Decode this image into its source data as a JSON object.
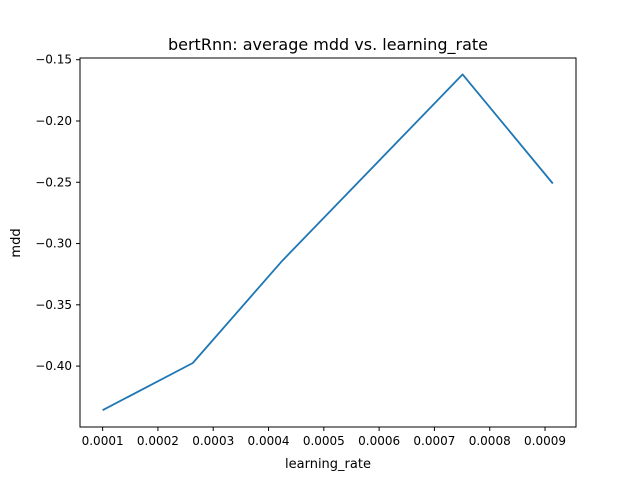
{
  "chart_data": {
    "type": "line",
    "title": "bertRnn: average mdd vs. learning_rate",
    "xlabel": "learning_rate",
    "ylabel": "mdd",
    "xlim": [
      5.91e-05,
      0.000956
    ],
    "ylim": [
      -0.4497,
      -0.1486
    ],
    "xticks": [
      0.0001,
      0.0002,
      0.0003,
      0.0004,
      0.0005,
      0.0006,
      0.0007,
      0.0008,
      0.0009
    ],
    "xtick_labels": [
      "0.0001",
      "0.0002",
      "0.0003",
      "0.0004",
      "0.0005",
      "0.0006",
      "0.0007",
      "0.0008",
      "0.0009"
    ],
    "yticks": [
      -0.4,
      -0.35,
      -0.3,
      -0.25,
      -0.2,
      -0.15
    ],
    "ytick_labels": [
      "−0.40",
      "−0.35",
      "−0.30",
      "−0.25",
      "−0.20",
      "−0.15"
    ],
    "grid": false,
    "series": [
      {
        "color": "#1f77b4",
        "x": [
          0.0001,
          0.000263,
          0.000425,
          0.000751,
          0.000914
        ],
        "y": [
          -0.436,
          -0.3975,
          -0.314,
          -0.162,
          -0.251
        ]
      }
    ]
  }
}
